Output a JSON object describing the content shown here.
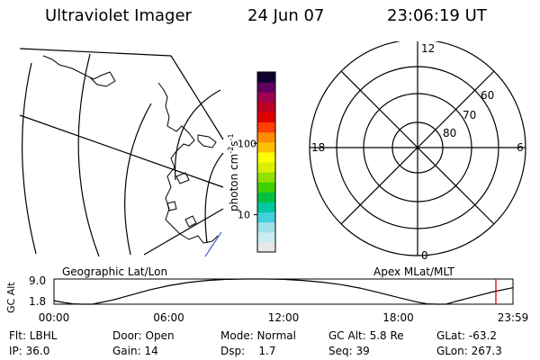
{
  "header": {
    "title": "Ultraviolet Imager",
    "date": "24 Jun 07",
    "time": "23:06:19 UT"
  },
  "colorbar": {
    "label": "photon cm",
    "label_sup1": "-2",
    "label_mid": "s",
    "label_sup2": "-1",
    "ticks": [
      {
        "value": 100,
        "label": "100"
      },
      {
        "value": 10,
        "label": "10"
      }
    ],
    "range": [
      3,
      1000
    ],
    "scale": "log",
    "colors": [
      "#e8e8e8",
      "#c8ecf0",
      "#a0e0e8",
      "#40d0e0",
      "#00c8a0",
      "#00c040",
      "#40d000",
      "#90e000",
      "#d8f000",
      "#ffff00",
      "#ffc000",
      "#ff8c00",
      "#ff4000",
      "#e00000",
      "#c00020",
      "#a00050",
      "#600060",
      "#100030"
    ]
  },
  "geo_panel": {
    "label": "Geographic Lat/Lon"
  },
  "polar_panel": {
    "label": "Apex MLat/MLT",
    "mlt_labels": {
      "top": "12",
      "left": "18",
      "right": "6",
      "bottom": "0"
    },
    "mlat_labels": [
      "60",
      "70",
      "80"
    ]
  },
  "chart_data": {
    "type": "line",
    "ylabel": "GC Alt",
    "ylim": [
      1.8,
      9.0
    ],
    "yticks": [
      "9.0",
      "1.8"
    ],
    "xticks": [
      "00:00",
      "06:00",
      "12:00",
      "18:00",
      "23:59"
    ],
    "xlim_hours": [
      0,
      24
    ],
    "series": [
      {
        "x_hours": [
          0,
          0.5,
          1,
          1.5,
          2,
          3,
          4,
          5,
          6,
          7,
          8,
          9,
          10,
          11,
          12,
          13,
          14,
          15,
          16,
          17,
          18,
          19,
          19.5,
          20,
          20.5,
          21,
          22,
          23,
          23.99
        ],
        "values": [
          2.8,
          2.3,
          1.9,
          1.6,
          1.8,
          2.9,
          4.4,
          5.9,
          7.1,
          8.0,
          8.6,
          8.9,
          9.0,
          9.0,
          8.9,
          8.6,
          8.1,
          7.4,
          6.4,
          5.1,
          3.7,
          2.4,
          1.9,
          1.6,
          1.8,
          2.6,
          4.0,
          5.4,
          6.5
        ]
      }
    ],
    "marker_hours": 23.105
  },
  "info": {
    "flt": "Flt: LBHL",
    "ip": "IP: 36.0",
    "door": "Door: Open",
    "gain": "Gain: 14",
    "mode": "Mode: Normal",
    "dsp": "Dsp:    1.7",
    "gcalt": "GC Alt: 5.8 Re",
    "seq": "Seq: 39",
    "glat": "GLat: -63.2",
    "glon": "GLon: 267.3"
  }
}
